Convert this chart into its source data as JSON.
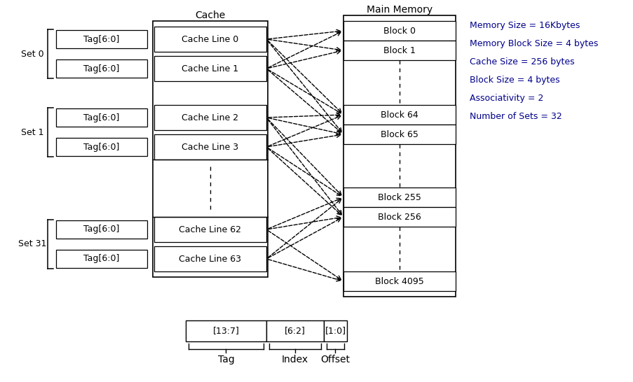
{
  "cache_label": "Cache",
  "memory_label": "Main Memory",
  "cache_lines": [
    "Cache Line 0",
    "Cache Line 1",
    "Cache Line 2",
    "Cache Line 3",
    "Cache Line 62",
    "Cache Line 63"
  ],
  "tag_label": "Tag[6:0]",
  "set_labels": [
    "Set 0",
    "Set 1",
    "Set 31"
  ],
  "memory_blocks": [
    "Block 0",
    "Block 1",
    "Block 64",
    "Block 65",
    "Block 255",
    "Block 256",
    "Block 4095"
  ],
  "info_lines": [
    "Memory Size = 16Kbytes",
    "Memory Block Size = 4 bytes",
    "Cache Size = 256 bytes",
    "Block Size = 4 bytes",
    "Associativity = 2",
    "Number of Sets = 32"
  ],
  "addr_fields": [
    "[13:7]",
    "[6:2]",
    "[1:0]"
  ],
  "addr_labels": [
    "Tag",
    "Index",
    "Offset"
  ],
  "bg_color": "#ffffff",
  "text_color": "#000000",
  "info_color": "#00008b"
}
